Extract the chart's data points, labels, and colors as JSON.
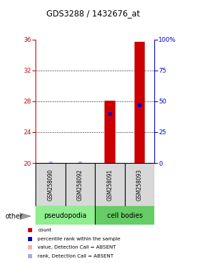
{
  "title": "GDS3288 / 1432676_at",
  "samples": [
    "GSM258090",
    "GSM258092",
    "GSM258091",
    "GSM258093"
  ],
  "ylim_left": [
    20,
    36
  ],
  "ylim_right": [
    0,
    100
  ],
  "yticks_left": [
    20,
    24,
    28,
    32,
    36
  ],
  "yticks_right": [
    0,
    25,
    50,
    75,
    100
  ],
  "bar_values": [
    null,
    null,
    28.1,
    35.7
  ],
  "bar_color": "#CC0000",
  "rank_values": [
    null,
    null,
    26.4,
    27.5
  ],
  "rank_color": "#0000CC",
  "absent_rank_values": [
    20.05,
    20.05,
    null,
    null
  ],
  "absent_rank_color": "#AAAADD",
  "absent_value_color": "#FFAAAA",
  "bar_width": 0.35,
  "group_label_pseudopodia": "pseudopodia",
  "group_label_cell_bodies": "cell bodies",
  "group_color_pseudo": "#90EE90",
  "group_color_cell": "#66CC66",
  "sample_bg_color": "#D8D8D8",
  "other_label": "other",
  "legend_count": "count",
  "legend_rank": "percentile rank within the sample",
  "legend_absent_value": "value, Detection Call = ABSENT",
  "legend_absent_rank": "rank, Detection Call = ABSENT",
  "left_axis_color": "#CC0000",
  "right_axis_color": "#0000CC",
  "grid_lines": [
    24,
    28,
    32
  ]
}
